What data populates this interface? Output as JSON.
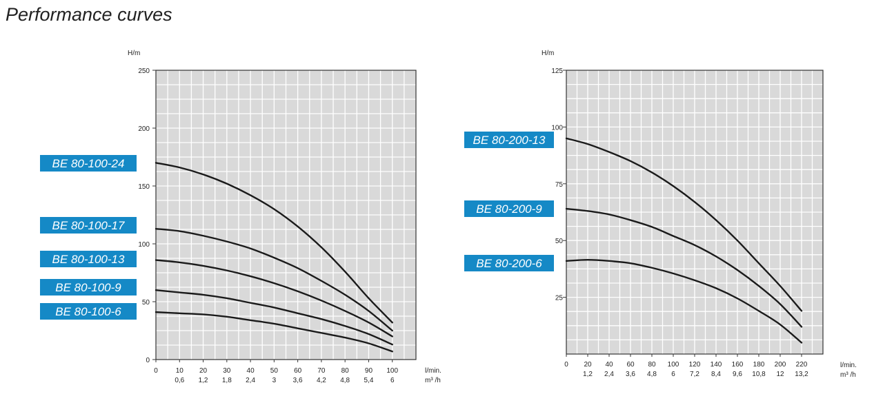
{
  "page": {
    "title": "Performance curves"
  },
  "colors": {
    "plot_bg": "#d9d9d9",
    "grid": "#ffffff",
    "curve": "#1a1a1a",
    "tag_bg": "#1589c6",
    "tag_text": "#ffffff"
  },
  "chart_data": [
    {
      "type": "line",
      "title": "",
      "ylabel": "H/m",
      "xlabel": "l/min.",
      "xlabel2": "m³ /h",
      "xlim": [
        0,
        110
      ],
      "ylim": [
        0,
        250
      ],
      "xgrid_step": 5,
      "ygrid_step": 12.5,
      "grid": true,
      "y_ticks": [
        "0",
        "50",
        "100",
        "150",
        "200",
        "250"
      ],
      "y_tick_values": [
        0,
        50,
        100,
        150,
        200,
        250
      ],
      "x_ticks": [
        "0",
        "10",
        "20",
        "30",
        "40",
        "50",
        "60",
        "70",
        "80",
        "90",
        "100"
      ],
      "x_tick_values": [
        0,
        10,
        20,
        30,
        40,
        50,
        60,
        70,
        80,
        90,
        100
      ],
      "x_ticks2": [
        "",
        "0,6",
        "1,2",
        "1,8",
        "2,4",
        "3",
        "3,6",
        "4,2",
        "4,8",
        "5,4",
        "6"
      ],
      "series": [
        {
          "name": "BE 80-100-24",
          "x": [
            0,
            10,
            20,
            30,
            40,
            50,
            60,
            70,
            80,
            90,
            100
          ],
          "y": [
            170,
            166,
            160,
            152,
            142,
            130,
            115,
            97,
            76,
            53,
            32
          ]
        },
        {
          "name": "BE 80-100-17",
          "x": [
            0,
            10,
            20,
            30,
            40,
            50,
            60,
            70,
            80,
            90,
            100
          ],
          "y": [
            113,
            111,
            107,
            102,
            96,
            88,
            79,
            68,
            56,
            42,
            25
          ]
        },
        {
          "name": "BE 80-100-13",
          "x": [
            0,
            10,
            20,
            30,
            40,
            50,
            60,
            70,
            80,
            90,
            100
          ],
          "y": [
            86,
            84,
            81,
            77,
            72,
            66,
            59,
            51,
            42,
            32,
            20
          ]
        },
        {
          "name": "BE 80-100-9",
          "x": [
            0,
            10,
            20,
            30,
            40,
            50,
            60,
            70,
            80,
            90,
            100
          ],
          "y": [
            60,
            58,
            56,
            53,
            49,
            45,
            40,
            35,
            29,
            22,
            13
          ]
        },
        {
          "name": "BE 80-100-6",
          "x": [
            0,
            10,
            20,
            30,
            40,
            50,
            60,
            70,
            80,
            90,
            100
          ],
          "y": [
            41,
            40,
            39,
            37,
            34,
            31,
            27,
            23,
            19,
            14,
            7
          ]
        }
      ]
    },
    {
      "type": "line",
      "title": "",
      "ylabel": "H/m",
      "xlabel": "l/min.",
      "xlabel2": "m³ /h",
      "xlim": [
        0,
        240
      ],
      "ylim": [
        0,
        125
      ],
      "xgrid_step": 10,
      "ygrid_step": 6.25,
      "grid": true,
      "y_ticks": [
        "25",
        "50",
        "75",
        "100",
        "125"
      ],
      "y_tick_values": [
        25,
        50,
        75,
        100,
        125
      ],
      "x_ticks": [
        "0",
        "20",
        "40",
        "60",
        "80",
        "100",
        "120",
        "140",
        "160",
        "180",
        "200",
        "220"
      ],
      "x_tick_values": [
        0,
        20,
        40,
        60,
        80,
        100,
        120,
        140,
        160,
        180,
        200,
        220
      ],
      "x_ticks2": [
        "",
        "1,2",
        "2,4",
        "3,6",
        "4,8",
        "6",
        "7,2",
        "8,4",
        "9,6",
        "10,8",
        "12",
        "13,2"
      ],
      "series": [
        {
          "name": "BE 80-200-13",
          "x": [
            0,
            20,
            40,
            60,
            80,
            100,
            120,
            140,
            160,
            180,
            200,
            220
          ],
          "y": [
            95,
            92.5,
            89,
            85,
            80,
            74,
            67,
            59,
            50,
            40,
            30,
            19
          ]
        },
        {
          "name": "BE 80-200-9",
          "x": [
            0,
            20,
            40,
            60,
            80,
            100,
            120,
            140,
            160,
            180,
            200,
            220
          ],
          "y": [
            64,
            63,
            61.5,
            59,
            56,
            52,
            48,
            43,
            37,
            30,
            22,
            12
          ]
        },
        {
          "name": "BE 80-200-6",
          "x": [
            0,
            20,
            40,
            60,
            80,
            100,
            120,
            140,
            160,
            180,
            200,
            220
          ],
          "y": [
            41,
            41.5,
            41,
            40,
            38,
            35.5,
            32.5,
            29,
            24.5,
            19,
            13,
            5
          ]
        }
      ]
    }
  ]
}
